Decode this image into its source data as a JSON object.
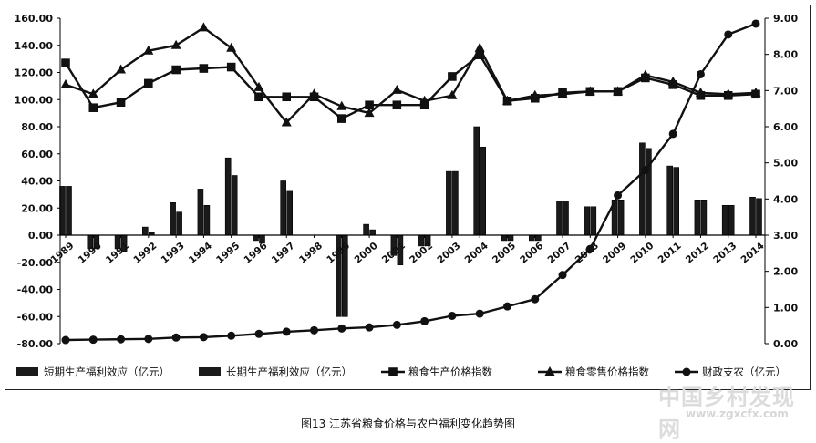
{
  "caption": "图13   江苏省粮食价格与农户福利变化趋势图",
  "watermark": {
    "text": "中国乡村发现网",
    "url": "www.zgxcfx.com"
  },
  "legend": [
    {
      "label": "短期生产福利效应（亿元）",
      "marker": "bar"
    },
    {
      "label": "长期生产福利效应（亿元）",
      "marker": "bar"
    },
    {
      "label": "粮食生产价格指数",
      "marker": "square"
    },
    {
      "label": "粮食零售价格指数",
      "marker": "triangle"
    },
    {
      "label": "财政支农（亿元）",
      "marker": "circle"
    }
  ],
  "chart_data": {
    "type": "bar+line",
    "categories": [
      "1989",
      "1990",
      "1991",
      "1992",
      "1993",
      "1994",
      "1995",
      "1996",
      "1997",
      "1998",
      "1999",
      "2000",
      "2001",
      "2002",
      "2003",
      "2004",
      "2005",
      "2006",
      "2007",
      "2008",
      "2009",
      "2010",
      "2011",
      "2012",
      "2013",
      "2014"
    ],
    "y_left": {
      "min": -80,
      "max": 160,
      "ticks": [
        "160.00",
        "140.00",
        "120.00",
        "100.00",
        "80.00",
        "60.00",
        "40.00",
        "20.00",
        "0.00",
        "-20.00",
        "-40.00",
        "-60.00",
        "-80.00"
      ]
    },
    "y_right": {
      "min": 0,
      "max": 9,
      "ticks": [
        "9.00",
        "8.00",
        "7.00",
        "6.00",
        "5.00",
        "4.00",
        "3.00",
        "2.00",
        "1.00",
        "0.00"
      ]
    },
    "series": [
      {
        "name": "短期生产福利效应（亿元）",
        "type": "bar",
        "axis": "left",
        "values": [
          36,
          -10,
          -10,
          6,
          24,
          34,
          57,
          -4,
          40,
          0,
          -60,
          8,
          -15,
          -8,
          47,
          80,
          -4,
          -4,
          25,
          21,
          26,
          68,
          51,
          26,
          22,
          28
        ]
      },
      {
        "name": "长期生产福利效应（亿元）",
        "type": "bar",
        "axis": "left",
        "values": [
          36,
          -10,
          -12,
          2,
          17,
          22,
          44,
          -6,
          33,
          0,
          -60,
          4,
          -22,
          -8,
          47,
          65,
          -4,
          -4,
          25,
          21,
          26,
          64,
          50,
          26,
          22,
          27
        ]
      },
      {
        "name": "粮食生产价格指数",
        "type": "line",
        "axis": "left",
        "marker": "square",
        "values": [
          127,
          94,
          98,
          112,
          122,
          123,
          124,
          102,
          102,
          102,
          86,
          96,
          96,
          96,
          117,
          133,
          99,
          101,
          105,
          106,
          106,
          116,
          111,
          103,
          103,
          104
        ]
      },
      {
        "name": "粮食零售价格指数",
        "type": "line",
        "axis": "left",
        "marker": "triangle",
        "values": [
          111,
          104,
          122,
          136,
          140,
          153,
          138,
          109,
          83,
          104,
          95,
          90,
          107,
          99,
          103,
          138,
          99,
          103,
          104,
          106,
          106,
          118,
          113,
          105,
          104,
          105
        ]
      },
      {
        "name": "财政支农（亿元）",
        "type": "line",
        "axis": "right",
        "marker": "circle",
        "values": [
          0.1,
          0.11,
          0.12,
          0.13,
          0.17,
          0.18,
          0.22,
          0.27,
          0.33,
          0.37,
          0.42,
          0.45,
          0.52,
          0.62,
          0.77,
          0.83,
          1.03,
          1.23,
          1.9,
          2.62,
          4.1,
          4.8,
          5.8,
          7.45,
          8.55,
          8.85
        ]
      }
    ]
  }
}
